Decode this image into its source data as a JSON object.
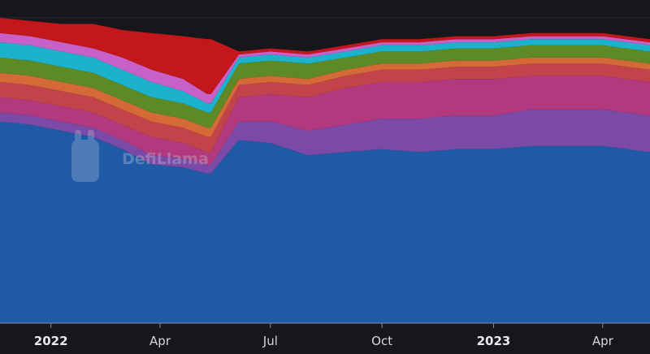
{
  "chart_data": {
    "type": "area",
    "stacked": true,
    "title": "",
    "xlabel": "",
    "ylabel": "",
    "watermark": "DefiLlama",
    "grid": false,
    "legend": "none",
    "x": [
      "2021-11-20",
      "2021-12-15",
      "2022-01-10",
      "2022-02-05",
      "2022-03-01",
      "2022-03-25",
      "2022-04-20",
      "2022-05-10",
      "2022-05-13",
      "2022-06-05",
      "2022-07-01",
      "2022-08-01",
      "2022-09-01",
      "2022-10-01",
      "2022-11-01",
      "2022-12-01",
      "2023-01-01",
      "2023-02-01",
      "2023-03-01",
      "2023-04-01",
      "2023-05-10"
    ],
    "x_ticks": [
      {
        "date": "2022-01-01",
        "label": "2022",
        "major": true
      },
      {
        "date": "2022-04-01",
        "label": "Apr",
        "major": false
      },
      {
        "date": "2022-07-01",
        "label": "Jul",
        "major": false
      },
      {
        "date": "2022-10-01",
        "label": "Oct",
        "major": false
      },
      {
        "date": "2023-01-01",
        "label": "2023",
        "major": true
      },
      {
        "date": "2023-04-01",
        "label": "Apr",
        "major": false
      }
    ],
    "x_range": [
      "2021-11-20",
      "2023-05-10"
    ],
    "y_range": [
      0,
      100
    ],
    "series": [
      {
        "color": "#1f5aa6",
        "values": [
          66,
          65,
          63,
          61,
          57,
          52,
          51,
          49,
          49,
          60,
          59,
          55,
          56,
          57,
          56,
          57,
          57,
          58,
          58,
          58,
          56
        ]
      },
      {
        "color": "#7a4aa6",
        "values": [
          3,
          3,
          3,
          3,
          3,
          3,
          3,
          3,
          3,
          6,
          7,
          8,
          9,
          10,
          11,
          11,
          11,
          12,
          12,
          12,
          12
        ]
      },
      {
        "color": "#b2397e",
        "values": [
          5,
          5,
          5,
          5,
          5,
          6,
          5,
          4,
          4,
          8,
          9,
          11,
          12,
          12,
          12,
          12,
          12,
          11,
          11,
          11,
          11
        ]
      },
      {
        "color": "#c2444a",
        "values": [
          5,
          5,
          5,
          5,
          5,
          5,
          5,
          5,
          5,
          4,
          4,
          4,
          4,
          4,
          4,
          4,
          4,
          4,
          4,
          4,
          4
        ]
      },
      {
        "color": "#d46a36",
        "values": [
          3,
          3,
          3,
          3,
          3,
          3,
          3,
          3,
          3,
          2,
          2,
          2,
          2,
          2,
          2,
          2,
          2,
          2,
          2,
          2,
          2
        ]
      },
      {
        "color": "#5e8a25",
        "values": [
          5,
          5,
          5,
          5,
          5,
          5,
          5,
          5,
          5,
          5,
          5,
          5,
          4,
          4,
          4,
          4,
          4,
          4,
          4,
          4,
          4
        ]
      },
      {
        "color": "#1bb2cc",
        "values": [
          5,
          5,
          5,
          5,
          5,
          5,
          4,
          3,
          3,
          2,
          2,
          2,
          2,
          2,
          2,
          2,
          2,
          2,
          2,
          2,
          2
        ]
      },
      {
        "color": "#c760c7",
        "values": [
          3,
          3,
          3,
          3,
          4,
          4,
          4,
          3,
          3,
          1,
          1,
          1,
          1,
          1,
          1,
          1,
          1,
          1,
          1,
          1,
          1
        ]
      },
      {
        "color": "#c4171c",
        "values": [
          5,
          5,
          6,
          8,
          9,
          12,
          14,
          18,
          18,
          1,
          1,
          1,
          1,
          1,
          1,
          1,
          1,
          1,
          1,
          1,
          1
        ]
      }
    ]
  }
}
